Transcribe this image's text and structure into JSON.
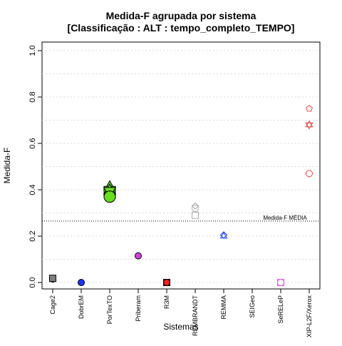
{
  "chart_data": {
    "type": "scatter",
    "title_line1": "Medida-F agrupada por sistema",
    "title_line2": "[Classificação : ALT : tempo_completo_TEMPO]",
    "xlabel": "Sistemas",
    "ylabel": "Medida-F",
    "ylim": [
      0.0,
      1.0
    ],
    "yticks": [
      "0.0",
      "0.2",
      "0.4",
      "0.6",
      "0.8",
      "1.0"
    ],
    "grid": "horizontal dotted",
    "categories": [
      "Cage2",
      "DobrEM",
      "PorTexTO",
      "Priberam",
      "R3M",
      "REMBRANDT",
      "REMMA",
      "SEIGeo",
      "SeRELeP",
      "XIP-L2F/Xerox"
    ],
    "mean_line": {
      "value": 0.265,
      "label": "Medida-F MÉDIA"
    },
    "points": [
      {
        "category": "Cage2",
        "y": 0.015,
        "shape": "triangle",
        "color": "#808080"
      },
      {
        "category": "Cage2",
        "y": 0.015,
        "shape": "circle",
        "color": "#808080"
      },
      {
        "category": "Cage2",
        "y": 0.018,
        "shape": "square",
        "color": "#808080"
      },
      {
        "category": "DobrEM",
        "y": 0.0,
        "shape": "circle",
        "color": "#1a33ff"
      },
      {
        "category": "PorTexTO",
        "y": 0.41,
        "shape": "triangle",
        "color": "#66dd22"
      },
      {
        "category": "PorTexTO",
        "y": 0.39,
        "shape": "square",
        "color": "#66dd22"
      },
      {
        "category": "PorTexTO",
        "y": 0.395,
        "shape": "star",
        "color": "#66dd22"
      },
      {
        "category": "PorTexTO",
        "y": 0.37,
        "shape": "circle",
        "color": "#66dd22"
      },
      {
        "category": "Priberam",
        "y": 0.115,
        "shape": "circle",
        "color": "#cc44dd"
      },
      {
        "category": "R3M",
        "y": 0.0,
        "shape": "square",
        "color": "#ee2222"
      },
      {
        "category": "R3M",
        "y": 0.0,
        "shape": "circle",
        "color": "#ee2222"
      },
      {
        "category": "REMBRANDT",
        "y": 0.33,
        "shape": "diamond",
        "color": "#aaaaaa"
      },
      {
        "category": "REMBRANDT",
        "y": 0.32,
        "shape": "circle",
        "color": "#aaaaaa"
      },
      {
        "category": "REMBRANDT",
        "y": 0.29,
        "shape": "square",
        "color": "#aaaaaa"
      },
      {
        "category": "REMMA",
        "y": 0.205,
        "shape": "diamond",
        "color": "#2244ff"
      },
      {
        "category": "REMMA",
        "y": 0.2,
        "shape": "triangle",
        "color": "#2244ff"
      },
      {
        "category": "SeRELeP",
        "y": 0.0,
        "shape": "square",
        "color": "#ee55ee"
      },
      {
        "category": "SeRELeP",
        "y": 0.0,
        "shape": "circle",
        "color": "#ee55ee"
      },
      {
        "category": "XIP-L2F/Xerox",
        "y": 0.75,
        "shape": "pentagon",
        "color": "#ee4444"
      },
      {
        "category": "XIP-L2F/Xerox",
        "y": 0.68,
        "shape": "star",
        "color": "#ee4444"
      },
      {
        "category": "XIP-L2F/Xerox",
        "y": 0.47,
        "shape": "circle",
        "color": "#ee4444"
      }
    ]
  }
}
